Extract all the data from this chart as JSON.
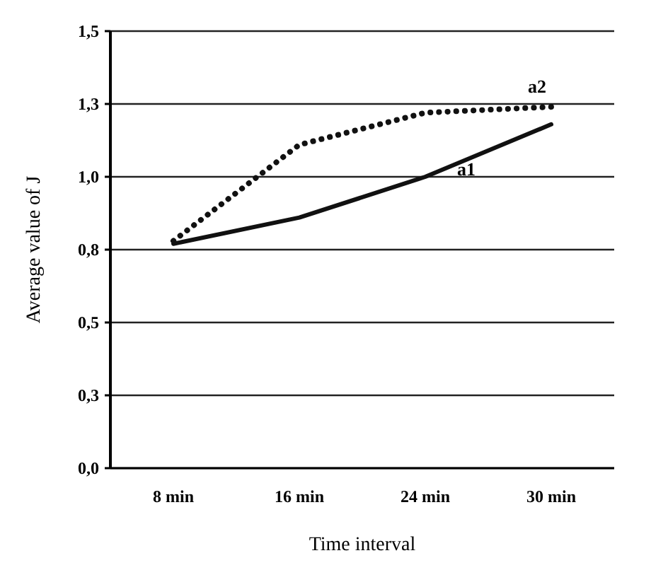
{
  "chart_data": {
    "type": "line",
    "xlabel": "Time interval",
    "ylabel": "Average value of J",
    "categories": [
      "8 min",
      "16 min",
      "24 min",
      "30 min"
    ],
    "series": [
      {
        "name": "a1",
        "color": "#111111",
        "values": [
          0.77,
          0.86,
          1.0,
          1.18
        ],
        "line_style": "solid"
      },
      {
        "name": "a2",
        "color": "#111111",
        "values": [
          0.78,
          1.11,
          1.22,
          1.24
        ],
        "line_style": "dotted"
      }
    ],
    "ylim": [
      0,
      1.5
    ],
    "yticks": [
      {
        "value": 0,
        "label": "0,0"
      },
      {
        "value": 0.25,
        "label": "0,3"
      },
      {
        "value": 0.5,
        "label": "0,5"
      },
      {
        "value": 0.75,
        "label": "0,8"
      },
      {
        "value": 1.0,
        "label": "1,0"
      },
      {
        "value": 1.25,
        "label": "1,3"
      },
      {
        "value": 1.5,
        "label": "1,5"
      }
    ],
    "grid": "y"
  }
}
